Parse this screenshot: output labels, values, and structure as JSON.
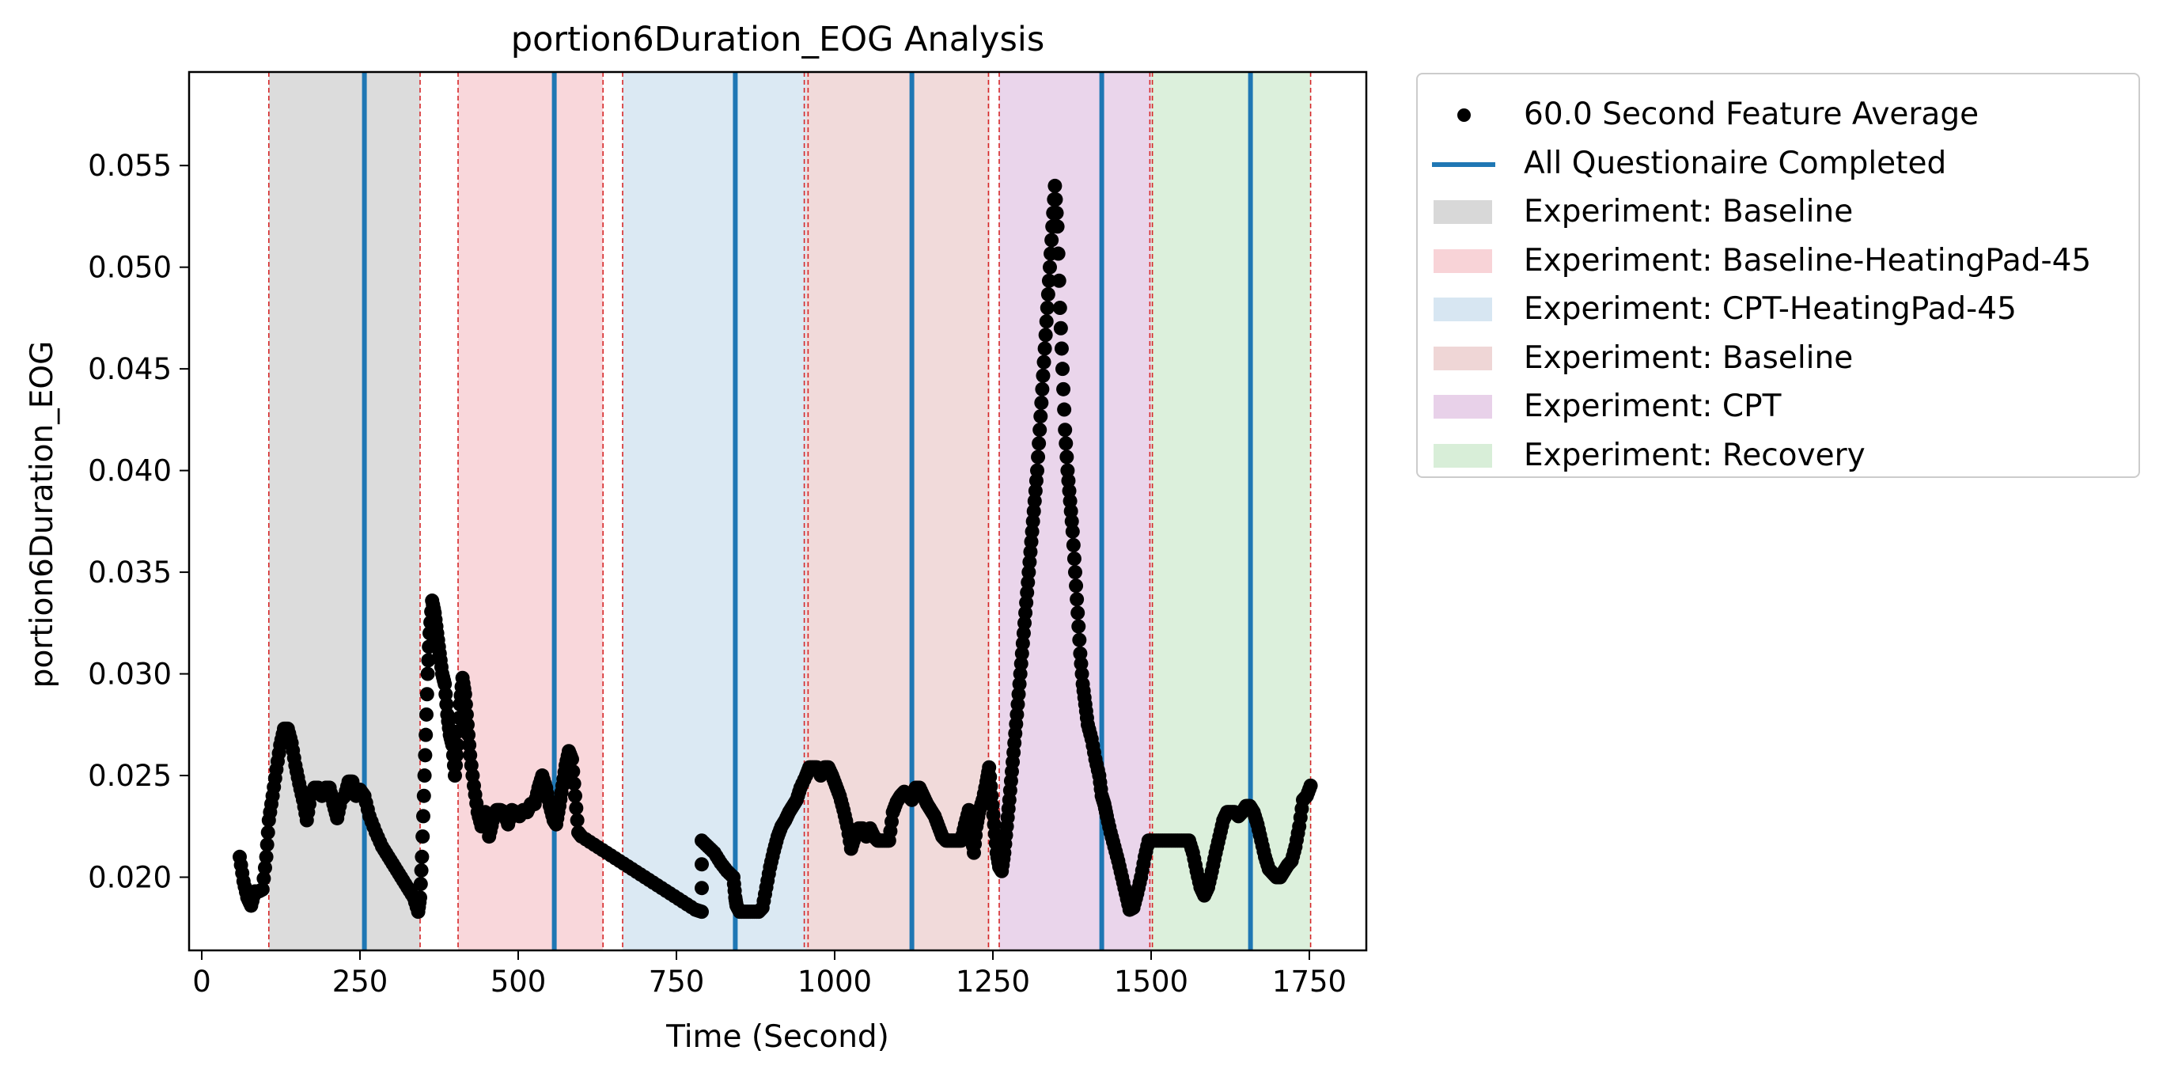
{
  "chart_data": {
    "type": "scatter",
    "title": "portion6Duration_EOG Analysis",
    "xlabel": "Time (Second)",
    "ylabel": "portion6Duration_EOG",
    "xlim": [
      -20,
      1840
    ],
    "ylim": [
      0.0164,
      0.0596
    ],
    "xticks": [
      0,
      250,
      500,
      750,
      1000,
      1250,
      1500,
      1750
    ],
    "xtick_labels": [
      "0",
      "250",
      "500",
      "750",
      "1000",
      "1250",
      "1500",
      "1750"
    ],
    "yticks": [
      0.02,
      0.025,
      0.03,
      0.035,
      0.04,
      0.045,
      0.05,
      0.055
    ],
    "ytick_labels": [
      "0.020",
      "0.025",
      "0.030",
      "0.035",
      "0.040",
      "0.045",
      "0.050",
      "0.055"
    ],
    "grid": false,
    "legend_position": "outside-right",
    "regions": [
      {
        "name": "Experiment: Baseline",
        "x0": 106,
        "x1": 345,
        "color": "#bfbfbf"
      },
      {
        "name": "Experiment: Baseline-HeatingPad-45",
        "x0": 405,
        "x1": 634,
        "color": "#f4b6bd"
      },
      {
        "name": "Experiment: CPT-HeatingPad-45",
        "x0": 665,
        "x1": 955,
        "color": "#bdd7ea"
      },
      {
        "name": "Experiment: Baseline",
        "x0": 955,
        "x1": 1245,
        "color": "#e6bcbc"
      },
      {
        "name": "Experiment: CPT",
        "x0": 1260,
        "x1": 1500,
        "color": "#d9b3db"
      },
      {
        "name": "Experiment: Recovery",
        "x0": 1500,
        "x1": 1752,
        "color": "#bfe3bf"
      }
    ],
    "boundary_lines_x": [
      106,
      345,
      405,
      634,
      665,
      952,
      958,
      1243,
      1260,
      1498,
      1502,
      1752
    ],
    "questionnaire_lines_x": [
      257,
      557,
      843,
      1122,
      1422,
      1657
    ],
    "series": [
      {
        "name": "60.0 Second Feature Average",
        "color": "#000000",
        "points": [
          [
            60,
            0.021
          ],
          [
            66,
            0.0198
          ],
          [
            72,
            0.019
          ],
          [
            78,
            0.0186
          ],
          [
            84,
            0.0193
          ],
          [
            90,
            0.0193
          ],
          [
            96,
            0.0194
          ],
          [
            102,
            0.021
          ],
          [
            106,
            0.0228
          ],
          [
            112,
            0.024
          ],
          [
            118,
            0.0253
          ],
          [
            124,
            0.0265
          ],
          [
            130,
            0.0273
          ],
          [
            136,
            0.0273
          ],
          [
            142,
            0.0266
          ],
          [
            148,
            0.0255
          ],
          [
            154,
            0.0246
          ],
          [
            160,
            0.0238
          ],
          [
            166,
            0.0228
          ],
          [
            172,
            0.024
          ],
          [
            178,
            0.0244
          ],
          [
            184,
            0.0244
          ],
          [
            190,
            0.024
          ],
          [
            196,
            0.0244
          ],
          [
            202,
            0.0244
          ],
          [
            208,
            0.0236
          ],
          [
            214,
            0.0229
          ],
          [
            220,
            0.0238
          ],
          [
            226,
            0.024
          ],
          [
            232,
            0.0247
          ],
          [
            238,
            0.0247
          ],
          [
            244,
            0.024
          ],
          [
            250,
            0.0243
          ],
          [
            257,
            0.024
          ],
          [
            265,
            0.023
          ],
          [
            275,
            0.0222
          ],
          [
            285,
            0.0215
          ],
          [
            295,
            0.021
          ],
          [
            305,
            0.0205
          ],
          [
            315,
            0.02
          ],
          [
            325,
            0.0195
          ],
          [
            335,
            0.019
          ],
          [
            342,
            0.0183
          ],
          [
            345,
            0.019
          ],
          [
            348,
            0.021
          ],
          [
            351,
            0.024
          ],
          [
            354,
            0.027
          ],
          [
            357,
            0.03
          ],
          [
            360,
            0.032
          ],
          [
            364,
            0.0336
          ],
          [
            368,
            0.033
          ],
          [
            372,
            0.032
          ],
          [
            376,
            0.031
          ],
          [
            380,
            0.03
          ],
          [
            384,
            0.0295
          ],
          [
            388,
            0.028
          ],
          [
            392,
            0.027
          ],
          [
            396,
            0.0265
          ],
          [
            400,
            0.025
          ],
          [
            404,
            0.0265
          ],
          [
            408,
            0.0285
          ],
          [
            412,
            0.0298
          ],
          [
            416,
            0.029
          ],
          [
            420,
            0.0275
          ],
          [
            424,
            0.026
          ],
          [
            430,
            0.0245
          ],
          [
            436,
            0.0232
          ],
          [
            442,
            0.0225
          ],
          [
            448,
            0.0232
          ],
          [
            454,
            0.022
          ],
          [
            460,
            0.0228
          ],
          [
            466,
            0.0233
          ],
          [
            472,
            0.0233
          ],
          [
            478,
            0.0232
          ],
          [
            484,
            0.0226
          ],
          [
            490,
            0.0233
          ],
          [
            496,
            0.0232
          ],
          [
            502,
            0.023
          ],
          [
            508,
            0.0233
          ],
          [
            514,
            0.0232
          ],
          [
            520,
            0.0236
          ],
          [
            526,
            0.0236
          ],
          [
            532,
            0.0244
          ],
          [
            538,
            0.025
          ],
          [
            544,
            0.0244
          ],
          [
            550,
            0.0235
          ],
          [
            556,
            0.0228
          ],
          [
            560,
            0.0226
          ],
          [
            565,
            0.0235
          ],
          [
            570,
            0.0245
          ],
          [
            575,
            0.0255
          ],
          [
            580,
            0.0262
          ],
          [
            585,
            0.0258
          ],
          [
            590,
            0.024
          ],
          [
            595,
            0.0222
          ],
          [
            600,
            0.022
          ],
          [
            620,
            0.0216
          ],
          [
            640,
            0.0212
          ],
          [
            660,
            0.0208
          ],
          [
            680,
            0.0204
          ],
          [
            700,
            0.02
          ],
          [
            720,
            0.0196
          ],
          [
            740,
            0.0192
          ],
          [
            760,
            0.0188
          ],
          [
            780,
            0.0184
          ],
          [
            790,
            0.0183
          ],
          [
            790,
            0.0218
          ],
          [
            800,
            0.0215
          ],
          [
            810,
            0.0212
          ],
          [
            820,
            0.0207
          ],
          [
            830,
            0.0203
          ],
          [
            840,
            0.02
          ],
          [
            843,
            0.019
          ],
          [
            845,
            0.0186
          ],
          [
            850,
            0.0183
          ],
          [
            860,
            0.0183
          ],
          [
            870,
            0.0183
          ],
          [
            880,
            0.0183
          ],
          [
            886,
            0.0185
          ],
          [
            892,
            0.0195
          ],
          [
            898,
            0.0205
          ],
          [
            904,
            0.0213
          ],
          [
            910,
            0.022
          ],
          [
            916,
            0.0225
          ],
          [
            922,
            0.0228
          ],
          [
            928,
            0.0232
          ],
          [
            934,
            0.0235
          ],
          [
            940,
            0.0238
          ],
          [
            946,
            0.0244
          ],
          [
            955,
            0.025
          ],
          [
            960,
            0.0254
          ],
          [
            966,
            0.0254
          ],
          [
            972,
            0.0254
          ],
          [
            978,
            0.025
          ],
          [
            984,
            0.0254
          ],
          [
            990,
            0.0254
          ],
          [
            996,
            0.025
          ],
          [
            1002,
            0.0245
          ],
          [
            1008,
            0.024
          ],
          [
            1014,
            0.0233
          ],
          [
            1020,
            0.0225
          ],
          [
            1026,
            0.0214
          ],
          [
            1032,
            0.022
          ],
          [
            1038,
            0.0224
          ],
          [
            1044,
            0.0224
          ],
          [
            1050,
            0.022
          ],
          [
            1056,
            0.0224
          ],
          [
            1062,
            0.022
          ],
          [
            1068,
            0.0218
          ],
          [
            1074,
            0.0218
          ],
          [
            1080,
            0.0218
          ],
          [
            1086,
            0.0218
          ],
          [
            1092,
            0.0232
          ],
          [
            1098,
            0.0237
          ],
          [
            1104,
            0.024
          ],
          [
            1110,
            0.0242
          ],
          [
            1116,
            0.024
          ],
          [
            1122,
            0.0238
          ],
          [
            1128,
            0.0244
          ],
          [
            1134,
            0.0244
          ],
          [
            1140,
            0.024
          ],
          [
            1146,
            0.0236
          ],
          [
            1152,
            0.0233
          ],
          [
            1158,
            0.023
          ],
          [
            1164,
            0.0225
          ],
          [
            1170,
            0.022
          ],
          [
            1176,
            0.0218
          ],
          [
            1182,
            0.0218
          ],
          [
            1188,
            0.0218
          ],
          [
            1194,
            0.0218
          ],
          [
            1200,
            0.0218
          ],
          [
            1206,
            0.0226
          ],
          [
            1212,
            0.0233
          ],
          [
            1216,
            0.0222
          ],
          [
            1220,
            0.0212
          ],
          [
            1224,
            0.0225
          ],
          [
            1228,
            0.0232
          ],
          [
            1234,
            0.0238
          ],
          [
            1240,
            0.0247
          ],
          [
            1244,
            0.0254
          ],
          [
            1248,
            0.024
          ],
          [
            1252,
            0.0226
          ],
          [
            1256,
            0.0212
          ],
          [
            1260,
            0.0205
          ],
          [
            1264,
            0.0203
          ],
          [
            1268,
            0.0212
          ],
          [
            1272,
            0.0225
          ],
          [
            1276,
            0.0238
          ],
          [
            1280,
            0.0252
          ],
          [
            1284,
            0.0266
          ],
          [
            1288,
            0.028
          ],
          [
            1292,
            0.0295
          ],
          [
            1296,
            0.031
          ],
          [
            1300,
            0.0325
          ],
          [
            1304,
            0.034
          ],
          [
            1308,
            0.0355
          ],
          [
            1312,
            0.037
          ],
          [
            1316,
            0.0385
          ],
          [
            1320,
            0.04
          ],
          [
            1324,
            0.042
          ],
          [
            1328,
            0.044
          ],
          [
            1332,
            0.046
          ],
          [
            1336,
            0.048
          ],
          [
            1340,
            0.05
          ],
          [
            1344,
            0.052
          ],
          [
            1348,
            0.054
          ],
          [
            1352,
            0.052
          ],
          [
            1356,
            0.048
          ],
          [
            1360,
            0.045
          ],
          [
            1364,
            0.042
          ],
          [
            1368,
            0.04
          ],
          [
            1372,
            0.0385
          ],
          [
            1376,
            0.037
          ],
          [
            1380,
            0.035
          ],
          [
            1384,
            0.033
          ],
          [
            1388,
            0.031
          ],
          [
            1392,
            0.0295
          ],
          [
            1396,
            0.0285
          ],
          [
            1400,
            0.0275
          ],
          [
            1406,
            0.0268
          ],
          [
            1412,
            0.0258
          ],
          [
            1418,
            0.025
          ],
          [
            1422,
            0.024
          ],
          [
            1426,
            0.0236
          ],
          [
            1430,
            0.023
          ],
          [
            1436,
            0.0222
          ],
          [
            1442,
            0.0215
          ],
          [
            1448,
            0.0208
          ],
          [
            1454,
            0.02
          ],
          [
            1460,
            0.0192
          ],
          [
            1466,
            0.0184
          ],
          [
            1472,
            0.0185
          ],
          [
            1478,
            0.0192
          ],
          [
            1484,
            0.02
          ],
          [
            1490,
            0.021
          ],
          [
            1496,
            0.0218
          ],
          [
            1500,
            0.0218
          ],
          [
            1510,
            0.0218
          ],
          [
            1520,
            0.0218
          ],
          [
            1530,
            0.0218
          ],
          [
            1540,
            0.0218
          ],
          [
            1550,
            0.0218
          ],
          [
            1560,
            0.0218
          ],
          [
            1566,
            0.0212
          ],
          [
            1572,
            0.0203
          ],
          [
            1578,
            0.0195
          ],
          [
            1584,
            0.0191
          ],
          [
            1590,
            0.0195
          ],
          [
            1596,
            0.0203
          ],
          [
            1602,
            0.0212
          ],
          [
            1608,
            0.022
          ],
          [
            1614,
            0.0228
          ],
          [
            1620,
            0.0232
          ],
          [
            1626,
            0.0232
          ],
          [
            1632,
            0.0232
          ],
          [
            1638,
            0.023
          ],
          [
            1644,
            0.0232
          ],
          [
            1650,
            0.0235
          ],
          [
            1656,
            0.0235
          ],
          [
            1662,
            0.0232
          ],
          [
            1668,
            0.0226
          ],
          [
            1674,
            0.0218
          ],
          [
            1680,
            0.021
          ],
          [
            1686,
            0.0204
          ],
          [
            1692,
            0.0202
          ],
          [
            1698,
            0.02
          ],
          [
            1704,
            0.02
          ],
          [
            1710,
            0.0203
          ],
          [
            1716,
            0.0206
          ],
          [
            1722,
            0.0208
          ],
          [
            1728,
            0.0215
          ],
          [
            1734,
            0.0225
          ],
          [
            1740,
            0.0238
          ],
          [
            1746,
            0.024
          ],
          [
            1752,
            0.0245
          ]
        ]
      },
      {
        "name": "All Questionaire Completed",
        "color": "#1f77b4"
      }
    ]
  },
  "legend": {
    "items": [
      {
        "label": "60.0 Second Feature Average",
        "kind": "marker",
        "color": "#000000"
      },
      {
        "label": "All Questionaire Completed",
        "kind": "line",
        "color": "#1f77b4"
      },
      {
        "label": "Experiment: Baseline",
        "kind": "patch",
        "color": "#bfbfbf"
      },
      {
        "label": "Experiment: Baseline-HeatingPad-45",
        "kind": "patch",
        "color": "#f4b6bd"
      },
      {
        "label": "Experiment: CPT-HeatingPad-45",
        "kind": "patch",
        "color": "#bdd7ea"
      },
      {
        "label": "Experiment: Baseline",
        "kind": "patch",
        "color": "#e6bcbc"
      },
      {
        "label": "Experiment: CPT",
        "kind": "patch",
        "color": "#d9b3db"
      },
      {
        "label": "Experiment: Recovery",
        "kind": "patch",
        "color": "#bfe3bf"
      }
    ]
  }
}
